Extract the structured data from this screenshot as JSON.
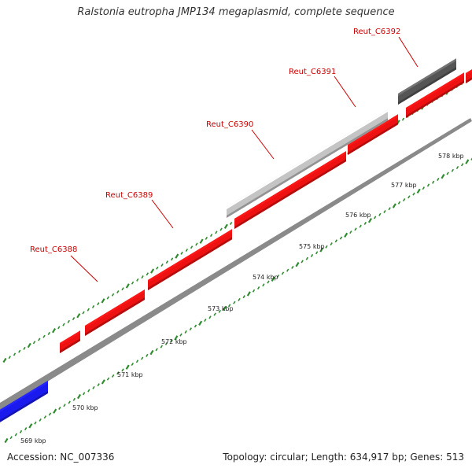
{
  "title": "Ralstonia eutropha JMP134 megaplasmid, complete sequence",
  "colors": {
    "gene_red": "#ee1111",
    "gene_blue": "#1a1aee",
    "gene_light_gray": "#c4c4c4",
    "gene_dark_gray": "#555555",
    "backbone": "#8a8a8a",
    "ticks": "#2e8b2e",
    "label": "#cc0000"
  },
  "map": {
    "kbp_ticks": [
      {
        "label": "569 kbp"
      },
      {
        "label": "570 kbp"
      },
      {
        "label": "571 kbp"
      },
      {
        "label": "572 kbp"
      },
      {
        "label": "573 kbp"
      },
      {
        "label": "574 kbp"
      },
      {
        "label": "575 kbp"
      },
      {
        "label": "576 kbp"
      },
      {
        "label": "577 kbp"
      },
      {
        "label": "578 kbp"
      }
    ],
    "gene_labels": [
      {
        "name": "Reut_C6388"
      },
      {
        "name": "Reut_C6389"
      },
      {
        "name": "Reut_C6390"
      },
      {
        "name": "Reut_C6391"
      },
      {
        "name": "Reut_C6392"
      }
    ]
  },
  "footer": {
    "accession": "Accession: NC_007336",
    "summary": "Topology: circular; Length: 634,917 bp; Genes: 513"
  }
}
